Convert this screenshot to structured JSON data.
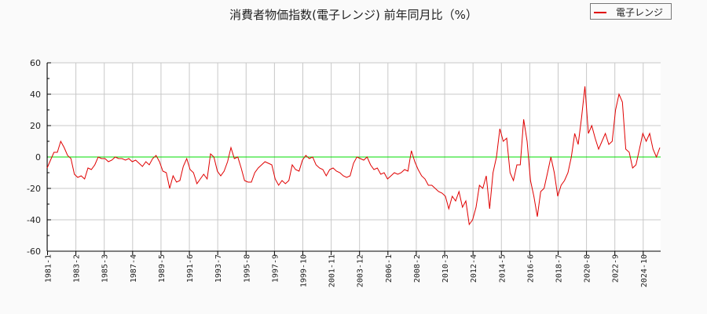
{
  "title": "消費者物価指数(電子レンジ) 前年同月比（%）",
  "legend": {
    "items": [
      {
        "label": "電子レンジ",
        "color": "#e00000"
      }
    ],
    "position": "top-right"
  },
  "colors": {
    "series": "#e00000",
    "zero_line": "#00dd00",
    "grid": "#c8c8c8",
    "axis": "#000000",
    "background": "#fafafa"
  },
  "chart_data": {
    "type": "line",
    "title": "消費者物価指数(電子レンジ) 前年同月比（%）",
    "xlabel": "",
    "ylabel": "",
    "ylim": [
      -60,
      60
    ],
    "yticks": [
      -60,
      -40,
      -20,
      0,
      20,
      40,
      60
    ],
    "xticks": [
      "1981-1",
      "1983-2",
      "1985-3",
      "1987-4",
      "1989-5",
      "1991-6",
      "1993-7",
      "1995-8",
      "1997-9",
      "1999-10",
      "2001-11",
      "2003-12",
      "2006-1",
      "2008-2",
      "2010-3",
      "2012-4",
      "2014-5",
      "2016-6",
      "2018-7",
      "2020-8",
      "2022-9",
      "2024-10"
    ],
    "grid": true,
    "reference_line": 0,
    "x_start": "1981-1",
    "x_step_months": 3,
    "series": [
      {
        "name": "電子レンジ",
        "values": [
          -7,
          -2,
          3,
          3,
          10,
          6,
          1,
          -1,
          -11,
          -13,
          -12,
          -14,
          -7,
          -8,
          -5,
          0,
          -1,
          -1,
          -3,
          -2,
          0,
          -1,
          -1,
          -2,
          -1,
          -3,
          -2,
          -4,
          -6,
          -3,
          -5,
          -1,
          1,
          -3,
          -9,
          -10,
          -20,
          -12,
          -16,
          -15,
          -6,
          -1,
          -8,
          -10,
          -17,
          -14,
          -11,
          -14,
          2,
          0,
          -9,
          -12,
          -9,
          -3,
          6,
          -1,
          0,
          -7,
          -15,
          -16,
          -16,
          -10,
          -7,
          -5,
          -3,
          -4,
          -5,
          -14,
          -18,
          -15,
          -17,
          -15,
          -5,
          -8,
          -9,
          -2,
          1,
          -1,
          0,
          -5,
          -7,
          -8,
          -12,
          -8,
          -7,
          -9,
          -10,
          -12,
          -13,
          -12,
          -4,
          0,
          -1,
          -2,
          0,
          -5,
          -8,
          -7,
          -11,
          -10,
          -14,
          -12,
          -10,
          -11,
          -10,
          -8,
          -9,
          4,
          -3,
          -8,
          -12,
          -14,
          -18,
          -18,
          -20,
          -22,
          -23,
          -25,
          -33,
          -25,
          -28,
          -22,
          -32,
          -28,
          -43,
          -40,
          -32,
          -18,
          -20,
          -12,
          -33,
          -10,
          0,
          18,
          10,
          12,
          -10,
          -15,
          -5,
          -5,
          24,
          10,
          -15,
          -25,
          -38,
          -22,
          -20,
          -10,
          0,
          -10,
          -25,
          -18,
          -15,
          -10,
          0,
          15,
          8,
          25,
          45,
          15,
          20,
          12,
          5,
          10,
          15,
          8,
          10,
          30,
          40,
          35,
          5,
          3,
          -7,
          -5,
          5,
          15,
          10,
          15,
          5,
          0,
          6
        ]
      }
    ]
  }
}
